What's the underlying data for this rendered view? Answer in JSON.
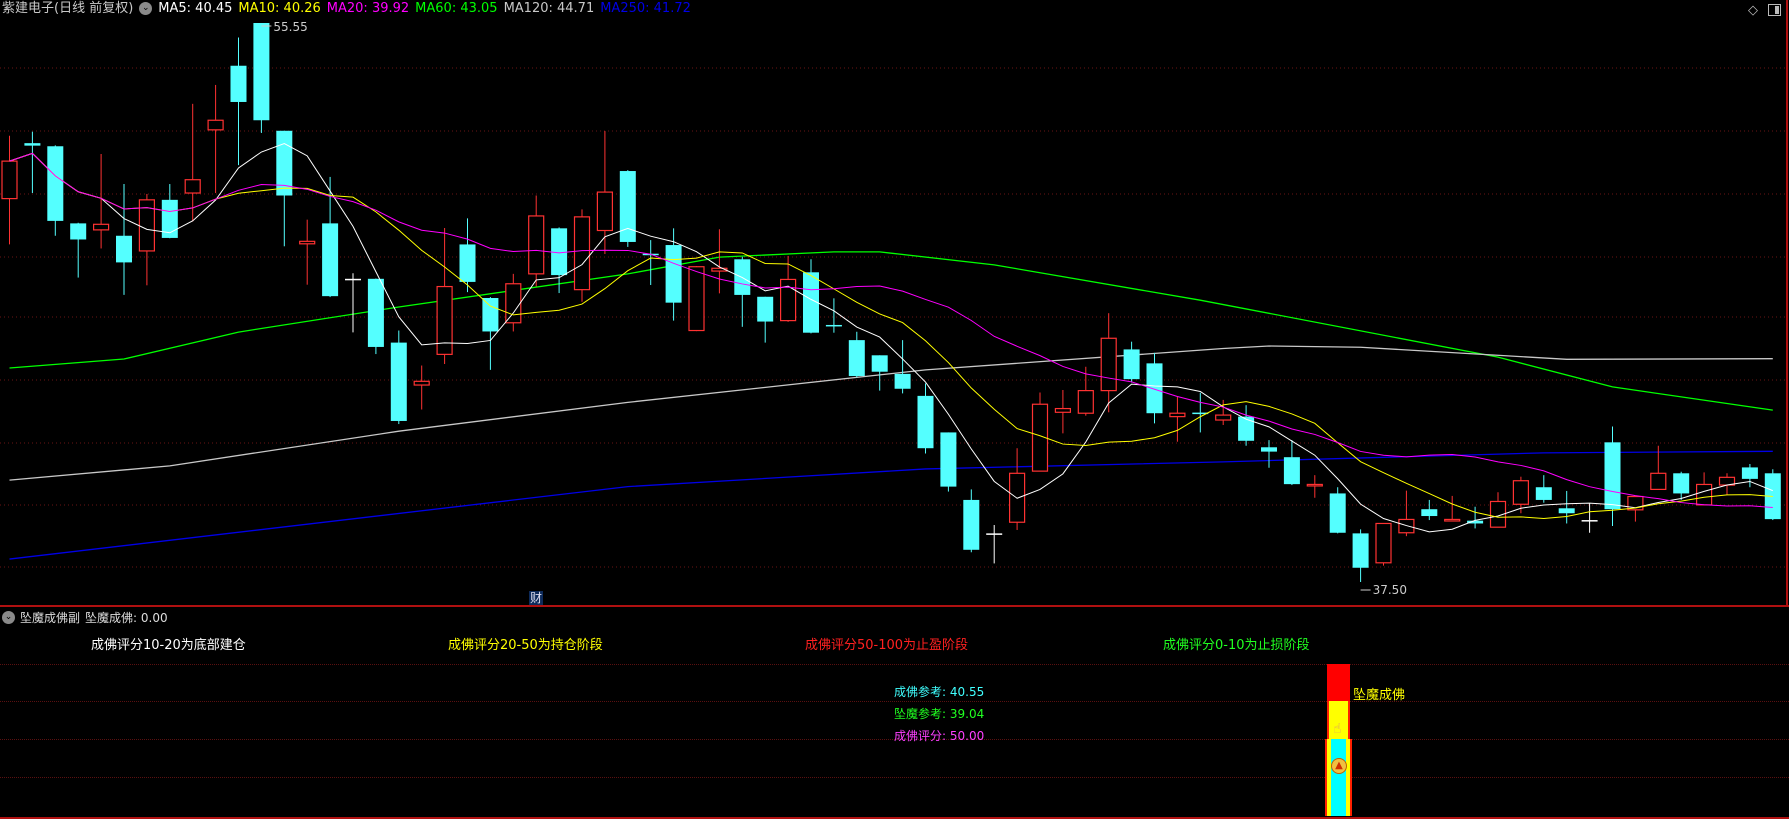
{
  "header": {
    "title": "紫建电子(日线 前复权)",
    "dropdown_icon": "chevron-down-icon",
    "ma": [
      {
        "label": "MA5: 40.45",
        "color": "#ffffff"
      },
      {
        "label": "MA10: 40.26",
        "color": "#ffff00"
      },
      {
        "label": "MA20: 39.92",
        "color": "#ff00ff"
      },
      {
        "label": "MA60: 43.05",
        "color": "#00ff00"
      },
      {
        "label": "MA120: 44.71",
        "color": "#c8c8c8"
      },
      {
        "label": "MA250: 41.72",
        "color": "#0000e6"
      }
    ],
    "right_icons": [
      "diamond-icon",
      "panel-toggle-icon"
    ]
  },
  "chart_data": {
    "type": "candlestick",
    "colors": {
      "up": "#ff3232",
      "down": "#54ffff",
      "flat": "#ffffff"
    },
    "ohlc": [
      [
        49.88,
        51.91,
        48.4,
        51.09
      ],
      [
        51.67,
        52.04,
        50.06,
        51.59
      ],
      [
        51.57,
        51.6,
        48.68,
        49.16
      ],
      [
        49.08,
        49.1,
        47.33,
        48.56
      ],
      [
        48.87,
        51.32,
        48.27,
        49.05
      ],
      [
        48.68,
        50.35,
        46.77,
        47.82
      ],
      [
        48.19,
        50.03,
        47.08,
        49.84
      ],
      [
        49.84,
        50.35,
        48.6,
        48.61
      ],
      [
        50.06,
        52.94,
        49.14,
        50.49
      ],
      [
        52.1,
        53.55,
        50.06,
        52.41
      ],
      [
        54.17,
        55.08,
        50.96,
        53.0
      ],
      [
        55.55,
        55.55,
        52.0,
        52.41
      ],
      [
        52.07,
        52.07,
        48.34,
        49.98
      ],
      [
        48.42,
        49.2,
        47.1,
        48.5
      ],
      [
        49.08,
        50.58,
        46.7,
        46.73
      ],
      [
        47.29,
        47.47,
        45.56,
        47.29
      ],
      [
        47.29,
        47.3,
        44.86,
        45.09
      ],
      [
        45.23,
        45.62,
        42.6,
        42.7
      ],
      [
        43.86,
        44.49,
        43.07,
        43.98
      ],
      [
        44.85,
        48.93,
        44.54,
        47.04
      ],
      [
        48.4,
        49.24,
        46.86,
        47.19
      ],
      [
        46.67,
        46.7,
        44.35,
        45.59
      ],
      [
        45.87,
        47.45,
        45.59,
        47.13
      ],
      [
        47.45,
        49.98,
        47.04,
        49.32
      ],
      [
        48.92,
        48.95,
        46.83,
        47.41
      ],
      [
        46.94,
        49.53,
        46.55,
        49.29
      ],
      [
        48.85,
        52.06,
        48.09,
        50.09
      ],
      [
        50.77,
        50.8,
        48.32,
        48.48
      ],
      [
        48.1,
        48.54,
        47.09,
        48.06
      ],
      [
        48.38,
        48.92,
        45.94,
        46.52
      ],
      [
        45.62,
        47.7,
        45.6,
        47.68
      ],
      [
        47.54,
        48.89,
        46.82,
        47.63
      ],
      [
        47.92,
        48.0,
        45.74,
        46.77
      ],
      [
        46.71,
        46.71,
        45.23,
        45.91
      ],
      [
        45.94,
        48.03,
        45.9,
        47.27
      ],
      [
        47.5,
        47.92,
        45.53,
        45.55
      ],
      [
        45.8,
        46.66,
        45.55,
        45.78
      ],
      [
        45.31,
        45.58,
        44.11,
        44.15
      ],
      [
        44.82,
        44.82,
        43.68,
        44.29
      ],
      [
        44.22,
        45.31,
        43.59,
        43.74
      ],
      [
        43.51,
        43.91,
        41.65,
        41.82
      ],
      [
        42.33,
        42.33,
        40.42,
        40.58
      ],
      [
        40.15,
        40.49,
        38.46,
        38.54
      ],
      [
        39.07,
        39.34,
        38.1,
        39.07
      ],
      [
        39.43,
        41.82,
        39.18,
        41.01
      ],
      [
        41.08,
        43.62,
        41.08,
        43.24
      ],
      [
        42.98,
        43.7,
        42.3,
        43.1
      ],
      [
        42.95,
        44.45,
        42.87,
        43.68
      ],
      [
        43.68,
        46.18,
        42.98,
        45.37
      ],
      [
        45.01,
        45.26,
        43.94,
        44.05
      ],
      [
        44.56,
        44.9,
        42.62,
        42.95
      ],
      [
        42.84,
        43.49,
        42.03,
        42.95
      ],
      [
        42.97,
        43.61,
        42.33,
        42.94
      ],
      [
        42.73,
        43.38,
        42.57,
        42.89
      ],
      [
        42.84,
        43.21,
        41.9,
        42.06
      ],
      [
        41.85,
        42.08,
        41.19,
        41.71
      ],
      [
        41.53,
        42.08,
        40.63,
        40.66
      ],
      [
        40.63,
        40.95,
        40.22,
        40.65
      ],
      [
        40.36,
        40.56,
        39.07,
        39.09
      ],
      [
        39.07,
        39.2,
        37.5,
        37.96
      ],
      [
        38.12,
        39.4,
        38.03,
        39.39
      ],
      [
        39.09,
        40.45,
        38.98,
        39.52
      ],
      [
        39.85,
        40.15,
        39.5,
        39.63
      ],
      [
        39.47,
        40.28,
        39.47,
        39.52
      ],
      [
        39.48,
        39.93,
        39.23,
        39.39
      ],
      [
        39.27,
        40.4,
        39.27,
        40.1
      ],
      [
        40.01,
        40.9,
        39.72,
        40.77
      ],
      [
        40.56,
        40.95,
        40.06,
        40.15
      ],
      [
        39.88,
        40.44,
        39.39,
        39.72
      ],
      [
        39.5,
        40.04,
        39.09,
        39.5
      ],
      [
        42.01,
        42.52,
        39.31,
        39.85
      ],
      [
        39.83,
        40.26,
        39.45,
        40.26
      ],
      [
        40.49,
        41.9,
        40.49,
        41.01
      ],
      [
        41.01,
        41.06,
        40.15,
        40.36
      ],
      [
        39.99,
        41.04,
        39.99,
        40.65
      ],
      [
        40.63,
        41.01,
        40.31,
        40.88
      ],
      [
        41.2,
        41.31,
        40.56,
        40.83
      ],
      [
        41.01,
        41.14,
        39.5,
        39.53
      ]
    ],
    "computed_ma": [
      {
        "period": 5,
        "color": "#ffffff"
      },
      {
        "period": 10,
        "color": "#ffff00"
      },
      {
        "period": 20,
        "color": "#ff00ff"
      }
    ],
    "long_ma": [
      {
        "name": "MA60",
        "color": "#00ff00",
        "points": [
          [
            0,
            44.41
          ],
          [
            5,
            44.7
          ],
          [
            10,
            45.57
          ],
          [
            17,
            46.38
          ],
          [
            27,
            47.45
          ],
          [
            31,
            47.99
          ],
          [
            36,
            48.16
          ],
          [
            38,
            48.16
          ],
          [
            43,
            47.74
          ],
          [
            52,
            46.6
          ],
          [
            65,
            44.76
          ],
          [
            70,
            43.8
          ],
          [
            77,
            43.05
          ]
        ]
      },
      {
        "name": "MA120",
        "color": "#c8c8c8",
        "points": [
          [
            0,
            40.79
          ],
          [
            7,
            41.25
          ],
          [
            17,
            42.37
          ],
          [
            27,
            43.3
          ],
          [
            40,
            44.35
          ],
          [
            53,
            45.04
          ],
          [
            55,
            45.12
          ],
          [
            59,
            45.08
          ],
          [
            68,
            44.69
          ],
          [
            77,
            44.71
          ]
        ]
      },
      {
        "name": "MA250",
        "color": "#0000e6",
        "points": [
          [
            0,
            38.24
          ],
          [
            27,
            40.58
          ],
          [
            40,
            41.15
          ],
          [
            53,
            41.38
          ],
          [
            67,
            41.67
          ],
          [
            77,
            41.72
          ]
        ]
      }
    ],
    "ylim": [
      37.5,
      55.55
    ],
    "max_label": "55.55",
    "min_label": "37.50",
    "event_marker": "财",
    "grid": true
  },
  "sub_panel": {
    "title": "坠魔成佛副",
    "value_label": "坠魔成佛: 0.00",
    "legend": [
      {
        "text": "成佛评分10-20为底部建仓",
        "color": "#ffffff"
      },
      {
        "text": "成佛评分20-50为持仓阶段",
        "color": "#ffff00"
      },
      {
        "text": "成佛评分50-100为止盈阶段",
        "color": "#ff2020"
      },
      {
        "text": "成佛评分0-10为止损阶段",
        "color": "#20ff20"
      }
    ],
    "readouts": [
      {
        "text": "成佛参考: 40.55",
        "color": "#40ffff"
      },
      {
        "text": "坠魔参考: 39.04",
        "color": "#20ff20"
      },
      {
        "text": "成佛评分: 50.00",
        "color": "#ff40ff"
      }
    ],
    "bar_label": "坠魔成佛",
    "bar_colors": {
      "top": "#ff0000",
      "middle": "#ffff00",
      "bottom": "#00ffff"
    },
    "icons": [
      "hand-pointer-icon",
      "up-chevron-badge-icon"
    ]
  }
}
